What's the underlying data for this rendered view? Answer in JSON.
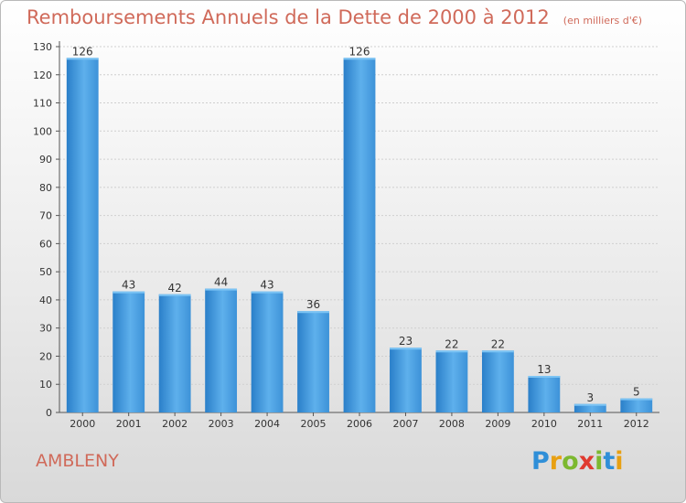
{
  "header": {
    "title": "Remboursements Annuels de la Dette de 2000 à 2012",
    "unit": "(en milliers d'€)"
  },
  "footer": {
    "commune": "AMBLENY",
    "brand": "Proxiti",
    "brand_colors": [
      "#2f8fd8",
      "#e8a012",
      "#7cb82f",
      "#e03a2f",
      "#7cb82f",
      "#2f8fd8",
      "#e8a012"
    ]
  },
  "chart_data": {
    "type": "bar",
    "title": "Remboursements Annuels de la Dette de 2000 à 2012",
    "xlabel": "",
    "ylabel": "",
    "categories": [
      "2000",
      "2001",
      "2002",
      "2003",
      "2004",
      "2005",
      "2006",
      "2007",
      "2008",
      "2009",
      "2010",
      "2011",
      "2012"
    ],
    "values": [
      126,
      43,
      42,
      44,
      43,
      36,
      126,
      23,
      22,
      22,
      13,
      3,
      5
    ],
    "ylim": [
      0,
      130
    ],
    "yticks": [
      0,
      10,
      20,
      30,
      40,
      50,
      60,
      70,
      80,
      90,
      100,
      110,
      120,
      130
    ],
    "grid": "horizontal",
    "bar_color": "#3d92d8",
    "bar_color_light": "#5eb0ec"
  }
}
